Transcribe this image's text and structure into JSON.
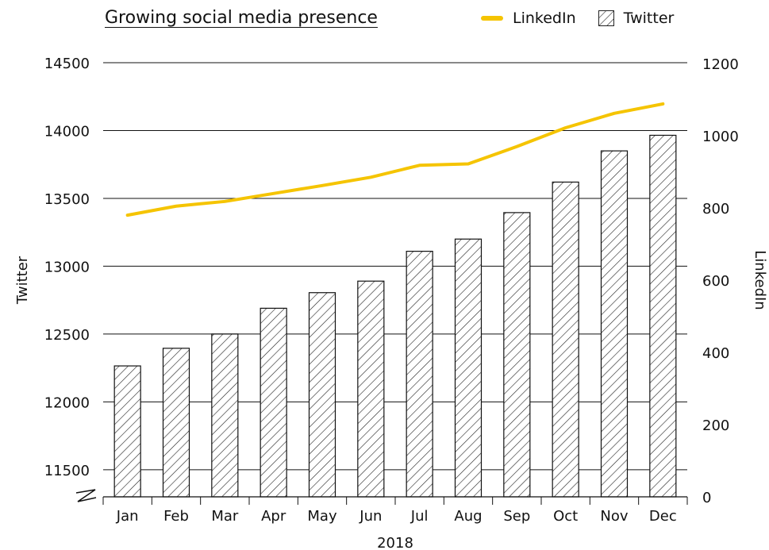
{
  "chart_data": {
    "type": "bar+line",
    "title": "Growing social media presence",
    "xlabel": "2018",
    "categories": [
      "Jan",
      "Feb",
      "Mar",
      "Apr",
      "May",
      "Jun",
      "Jul",
      "Aug",
      "Sep",
      "Oct",
      "Nov",
      "Dec"
    ],
    "series": [
      {
        "name": "Twitter",
        "type": "bar",
        "axis": "left",
        "pattern": "diagonal-hatch",
        "values": [
          12265,
          12395,
          12500,
          12690,
          12805,
          12890,
          13110,
          13200,
          13395,
          13620,
          13850,
          13965
        ]
      },
      {
        "name": "LinkedIn",
        "type": "line",
        "axis": "right",
        "color": "#F5C400",
        "values": [
          780,
          805,
          818,
          840,
          862,
          885,
          918,
          922,
          970,
          1022,
          1062,
          1088
        ]
      }
    ],
    "y_left": {
      "label": "Twitter",
      "ticks": [
        11500,
        12000,
        12500,
        13000,
        13500,
        14000,
        14500
      ],
      "range": [
        11300,
        14500
      ],
      "axis_break": true
    },
    "y_right": {
      "label": "LinkedIn",
      "ticks": [
        0,
        200,
        400,
        600,
        800,
        1000,
        1200
      ],
      "range": [
        0,
        1200
      ]
    },
    "grid": true,
    "legend": {
      "position": "top-right",
      "items": [
        "LinkedIn",
        "Twitter"
      ]
    },
    "colors": {
      "linkedin": "#F5C400",
      "text": "#111111"
    }
  }
}
